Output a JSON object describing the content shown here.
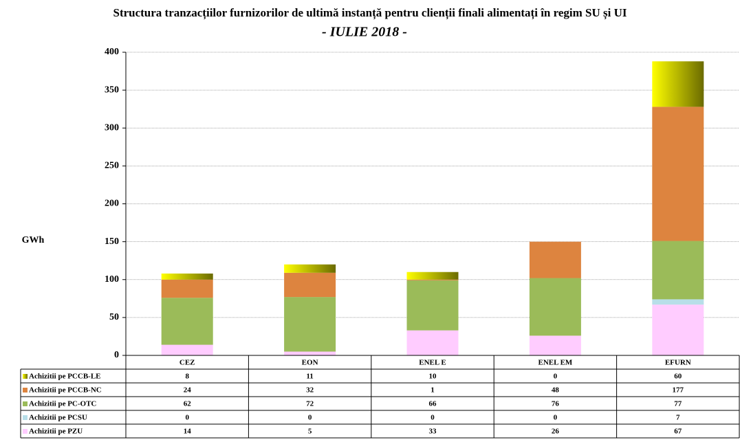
{
  "chart_data": {
    "type": "stacked_bar",
    "title": "Structura tranzacțiilor furnizorilor de ultimă instanță pentru clienții finali alimentați în regim SU și UI",
    "subtitle": "- IULIE 2018 -",
    "y_label": "GWh",
    "categories": [
      "CEZ",
      "EON",
      "ENEL E",
      "ENEL EM",
      "EFURN"
    ],
    "series": [
      {
        "name": "Achizitii pe PCCB-LE",
        "color": "#ffff00",
        "values": [
          8,
          11,
          10,
          0,
          60
        ]
      },
      {
        "name": "Achizitii pe PCCB-NC",
        "color": "#dd843f",
        "values": [
          24,
          32,
          1,
          48,
          177
        ]
      },
      {
        "name": "Achizitii pe PC-OTC",
        "color": "#9bbb59",
        "values": [
          62,
          72,
          66,
          76,
          77
        ]
      },
      {
        "name": "Achizitii pe PCSU",
        "color": "#b7dee8",
        "values": [
          0,
          0,
          0,
          0,
          7
        ]
      },
      {
        "name": "Achizitii pe PZU",
        "color": "#ffccff",
        "values": [
          14,
          5,
          33,
          26,
          67
        ]
      }
    ],
    "ylim": [
      0,
      400
    ],
    "yticks": [
      0,
      50,
      100,
      150,
      200,
      250,
      300,
      350,
      400
    ],
    "grid": true
  }
}
